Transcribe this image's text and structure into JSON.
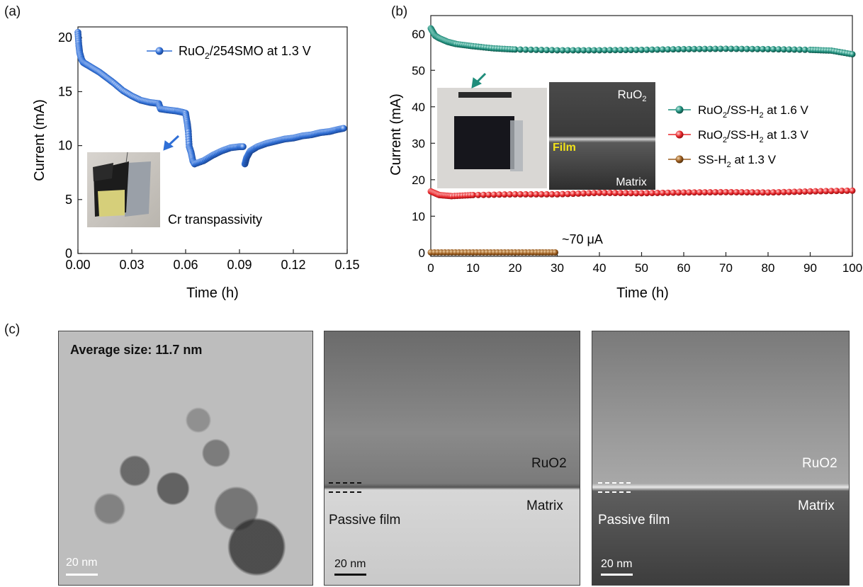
{
  "panels": {
    "a": "(a)",
    "b": "(b)",
    "c": "(c)"
  },
  "chart_data": [
    {
      "type": "scatter",
      "title": "",
      "xlabel": "Time (h)",
      "ylabel": "Current (mA)",
      "xlim": [
        0,
        0.15
      ],
      "ylim": [
        0,
        21
      ],
      "xticks": [
        "0.00",
        "0.03",
        "0.06",
        "0.09",
        "0.12",
        "0.15"
      ],
      "yticks": [
        "0",
        "5",
        "10",
        "15",
        "20"
      ],
      "series": [
        {
          "name": "RuO2/254SMO at 1.3 V",
          "color": "#2f6fd6",
          "segments": [
            {
              "x": [
                0,
                0.0005,
                0.001,
                0.002,
                0.003,
                0.005,
                0.008,
                0.012,
                0.016,
                0.02,
                0.025,
                0.03,
                0.035,
                0.04,
                0.045,
                0.046,
                0.05,
                0.055,
                0.058,
                0.06,
                0.061,
                0.0615,
                0.062,
                0.063,
                0.064,
                0.065
              ],
              "y": [
                20.5,
                19.3,
                18.6,
                18.0,
                17.7,
                17.5,
                17.2,
                16.8,
                16.3,
                15.8,
                15.1,
                14.6,
                14.2,
                14.0,
                13.9,
                13.4,
                13.3,
                13.2,
                13.1,
                13.0,
                12.0,
                11.3,
                9.9,
                9.4,
                8.6,
                8.3
              ]
            },
            {
              "x": [
                0.065,
                0.07,
                0.075,
                0.08,
                0.085,
                0.09,
                0.092
              ],
              "y": [
                8.3,
                8.6,
                9.1,
                9.5,
                9.8,
                9.9,
                9.9
              ]
            },
            {
              "x": [
                0.093,
                0.094,
                0.096,
                0.1,
                0.105,
                0.11,
                0.115,
                0.12,
                0.125,
                0.13,
                0.135,
                0.14,
                0.145,
                0.148
              ],
              "y": [
                8.3,
                8.9,
                9.5,
                9.9,
                10.2,
                10.4,
                10.6,
                10.7,
                10.9,
                11.0,
                11.2,
                11.3,
                11.5,
                11.6
              ]
            }
          ]
        }
      ],
      "annotations": [
        "Cr transpassivity"
      ],
      "legend": "top-right"
    },
    {
      "type": "scatter",
      "title": "",
      "xlabel": "Time (h)",
      "ylabel": "Current (mA)",
      "xlim": [
        0,
        100
      ],
      "ylim": [
        -1,
        65
      ],
      "xticks": [
        "0",
        "10",
        "20",
        "30",
        "40",
        "50",
        "60",
        "70",
        "80",
        "90",
        "100"
      ],
      "yticks": [
        "0",
        "10",
        "20",
        "30",
        "40",
        "50",
        "60"
      ],
      "series": [
        {
          "name": "RuO2/SS-H2 at 1.6 V",
          "color": "#1f8d7b",
          "x": [
            0,
            1,
            2,
            4,
            6,
            10,
            15,
            20,
            30,
            40,
            50,
            60,
            70,
            80,
            90,
            95,
            100
          ],
          "y": [
            61.5,
            59.5,
            58.8,
            57.8,
            57.2,
            56.6,
            56.0,
            55.7,
            55.5,
            55.5,
            55.6,
            55.8,
            55.9,
            55.8,
            55.6,
            55.4,
            54.4
          ]
        },
        {
          "name": "RuO2/SS-H2 at 1.3 V",
          "color": "#e8262a",
          "x": [
            0,
            2,
            5,
            10,
            20,
            30,
            40,
            50,
            60,
            70,
            80,
            90,
            100
          ],
          "y": [
            16.8,
            15.8,
            15.5,
            15.8,
            16.0,
            16.0,
            16.4,
            16.3,
            16.5,
            16.6,
            16.5,
            16.8,
            17.0
          ]
        },
        {
          "name": "SS-H2 at 1.3 V",
          "color": "#9a5b1d",
          "x": [
            0,
            5,
            10,
            15,
            20,
            25,
            29.5
          ],
          "y": [
            0.07,
            0.07,
            0.07,
            0.07,
            0.07,
            0.07,
            0.07
          ]
        }
      ],
      "annotations": [
        "~70 μA",
        "RuO2",
        "Film",
        "Matrix"
      ],
      "legend": "right"
    }
  ],
  "panel_c": {
    "img1": {
      "text": "Average size: 11.7 nm",
      "scalebar": "20 nm"
    },
    "img2": {
      "ruo2": "RuO2",
      "matrix": "Matrix",
      "passive": "Passive film",
      "scalebar": "20 nm"
    },
    "img3": {
      "ruo2": "RuO2",
      "matrix": "Matrix",
      "passive": "Passive film",
      "scalebar": "20 nm"
    }
  }
}
